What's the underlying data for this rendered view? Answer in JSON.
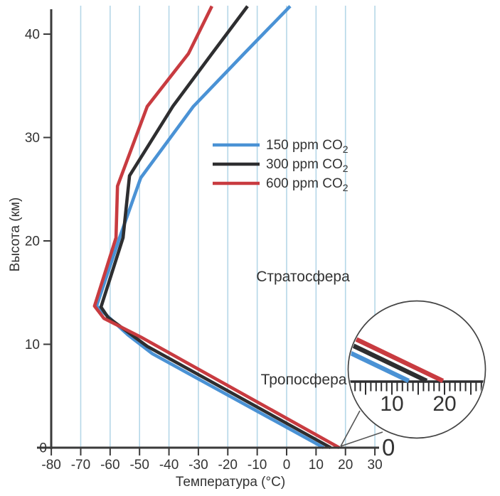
{
  "axes": {
    "x": {
      "label": "Температура (°C)",
      "tick_values": [
        -80,
        -70,
        -60,
        -50,
        -40,
        -30,
        -20,
        -10,
        0,
        10,
        20,
        30
      ]
    },
    "y": {
      "label": "Высота (км)",
      "tick_values": [
        0,
        10,
        20,
        30,
        40
      ],
      "right_zero_label": "0"
    }
  },
  "legend": {
    "items": [
      {
        "label": "150 ppm CO",
        "sub": "2",
        "color": "#4a92d5"
      },
      {
        "label": "300 ppm CO",
        "sub": "2",
        "color": "#2e2e30"
      },
      {
        "label": "600 ppm CO",
        "sub": "2",
        "color": "#c83b40"
      }
    ]
  },
  "annotations": {
    "stratosphere": "Стратосфера",
    "troposphere": "Тропосфера"
  },
  "inset": {
    "axis_tick_labels": [
      {
        "value": 10,
        "label": "10"
      },
      {
        "value": 20,
        "label": "20"
      }
    ],
    "line_touch_values": [
      13.2,
      16.6,
      19.7
    ]
  },
  "colors": {
    "gridline": "#b5d7e8",
    "axis": "#3a3a3a",
    "text": "#333333",
    "inset_outline": "#444444",
    "pointer": "#555555"
  },
  "chart_data": {
    "type": "line",
    "title": "",
    "xlabel": "Температура (°C)",
    "ylabel": "Высота (км)",
    "xlim": [
      -80,
      30
    ],
    "ylim": [
      0,
      42.7
    ],
    "x_gridlines": [
      -70,
      -60,
      -50,
      -40,
      -30,
      -20,
      -10,
      0,
      10,
      20,
      30
    ],
    "grid": "vertical-only",
    "legend_position": "upper-middle-right",
    "series": [
      {
        "name": "150 ppm CO2",
        "color": "#4a92d5",
        "points": [
          [
            12.6,
            0
          ],
          [
            -45.7,
            9.1
          ],
          [
            -53.9,
            10.9
          ],
          [
            -64.6,
            13.7
          ],
          [
            -56.8,
            20.3
          ],
          [
            -49.6,
            26.1
          ],
          [
            -31.7,
            33.0
          ],
          [
            -14.5,
            38.1
          ],
          [
            1.2,
            42.7
          ]
        ]
      },
      {
        "name": "300 ppm CO2",
        "color": "#2e2e30",
        "points": [
          [
            15.0,
            0
          ],
          [
            -47.4,
            9.8
          ],
          [
            -60.7,
            12.6
          ],
          [
            -63.1,
            13.6
          ],
          [
            -55.6,
            20.3
          ],
          [
            -53.4,
            26.3
          ],
          [
            -38.7,
            33.0
          ],
          [
            -25.4,
            38.1
          ],
          [
            -13.3,
            42.7
          ]
        ]
      },
      {
        "name": "600 ppm CO2",
        "color": "#c83b40",
        "points": [
          [
            17.9,
            0
          ],
          [
            -49.6,
            10.7
          ],
          [
            -62.1,
            12.5
          ],
          [
            -65.3,
            13.7
          ],
          [
            -58.0,
            20.3
          ],
          [
            -57.5,
            25.3
          ],
          [
            -47.4,
            33.0
          ],
          [
            -33.4,
            38.1
          ],
          [
            -25.4,
            42.7
          ]
        ]
      }
    ]
  }
}
